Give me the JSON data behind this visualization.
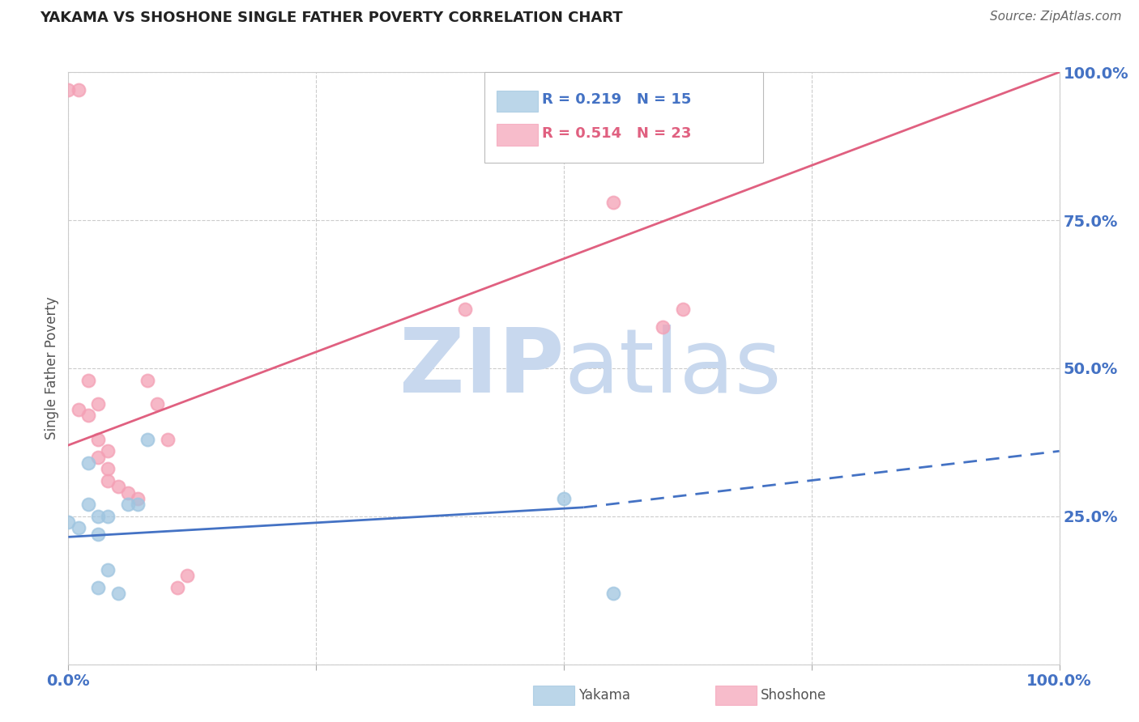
{
  "title": "YAKAMA VS SHOSHONE SINGLE FATHER POVERTY CORRELATION CHART",
  "source": "Source: ZipAtlas.com",
  "ylabel": "Single Father Poverty",
  "xlim": [
    0,
    1
  ],
  "ylim": [
    0,
    1
  ],
  "yakama_R": 0.219,
  "yakama_N": 15,
  "shoshone_R": 0.514,
  "shoshone_N": 23,
  "yakama_color": "#9fc5e0",
  "shoshone_color": "#f4a0b5",
  "yakama_line_color": "#4472c4",
  "shoshone_line_color": "#e06080",
  "watermark_zip_color": "#c8d8ee",
  "watermark_atlas_color": "#c8d8ee",
  "background_color": "#ffffff",
  "grid_color": "#cccccc",
  "title_color": "#222222",
  "source_color": "#666666",
  "axis_label_color": "#4472c4",
  "yakama_x": [
    0.0,
    0.01,
    0.02,
    0.02,
    0.03,
    0.03,
    0.03,
    0.04,
    0.04,
    0.05,
    0.06,
    0.07,
    0.08,
    0.5,
    0.55
  ],
  "yakama_y": [
    0.24,
    0.23,
    0.34,
    0.27,
    0.25,
    0.22,
    0.13,
    0.25,
    0.16,
    0.12,
    0.27,
    0.27,
    0.38,
    0.28,
    0.12
  ],
  "shoshone_x": [
    0.0,
    0.01,
    0.01,
    0.02,
    0.02,
    0.03,
    0.03,
    0.03,
    0.04,
    0.04,
    0.04,
    0.05,
    0.06,
    0.07,
    0.08,
    0.09,
    0.1,
    0.11,
    0.12,
    0.4,
    0.55,
    0.6,
    0.62
  ],
  "shoshone_y": [
    0.97,
    0.97,
    0.43,
    0.48,
    0.42,
    0.44,
    0.38,
    0.35,
    0.36,
    0.33,
    0.31,
    0.3,
    0.29,
    0.28,
    0.48,
    0.44,
    0.38,
    0.13,
    0.15,
    0.6,
    0.78,
    0.57,
    0.6
  ],
  "shoshone_line_x0": 0.0,
  "shoshone_line_y0": 0.37,
  "shoshone_line_x1": 1.0,
  "shoshone_line_y1": 1.0,
  "yakama_line_x0": 0.0,
  "yakama_line_y0": 0.215,
  "yakama_line_x1_solid": 0.52,
  "yakama_line_y1_solid": 0.265,
  "yakama_line_x1_dashed": 1.0,
  "yakama_line_y1_dashed": 0.36
}
